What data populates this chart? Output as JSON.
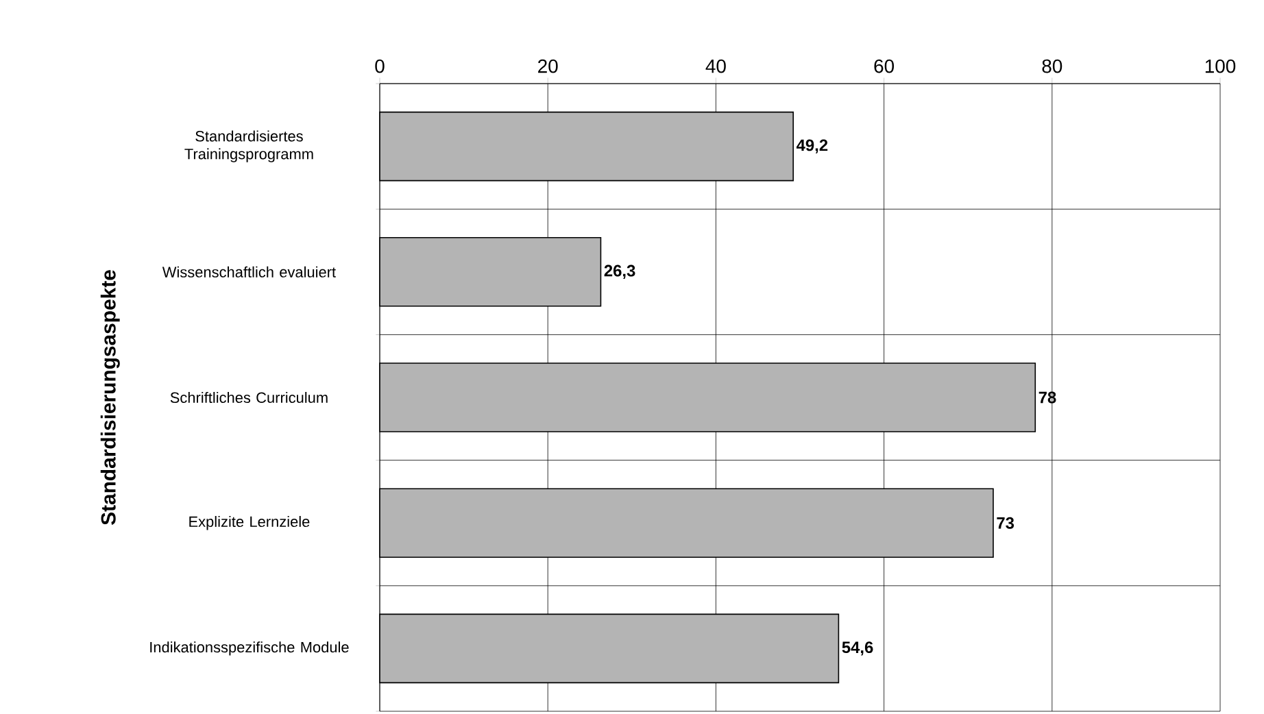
{
  "chart_data": {
    "type": "bar",
    "orientation": "horizontal",
    "ylabel": "Standardisierungsaspekte",
    "categories": [
      "Standardisiertes Trainingsprogramm",
      "Wissenschaftlich evaluiert",
      "Schriftliches Curriculum",
      "Explizite Lernziele",
      "Indikationsspezifische Module"
    ],
    "values": [
      49.2,
      26.3,
      78,
      73,
      54.6
    ],
    "value_labels": [
      "49,2",
      "26,3",
      "78",
      "73",
      "54,6"
    ],
    "color": "#b4b4b4",
    "xlim": [
      0,
      100
    ],
    "xticks": [
      0,
      20,
      40,
      60,
      80,
      100
    ],
    "grid": true
  }
}
